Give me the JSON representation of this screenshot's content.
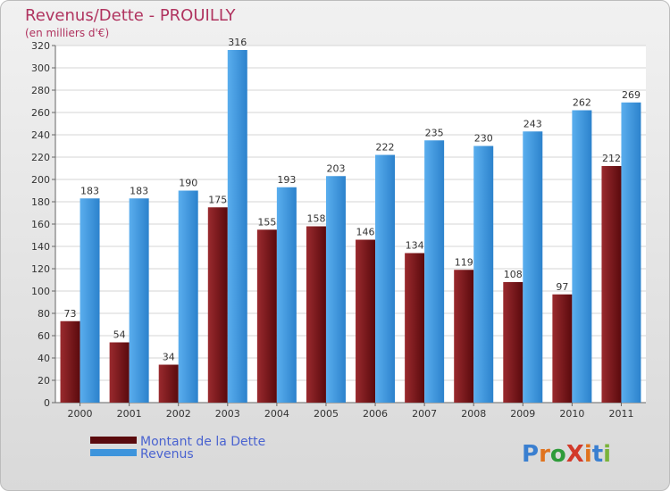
{
  "title": "Revenus/Dette - PROUILLY",
  "subtitle": "(en milliers d'€)",
  "chart_data": {
    "type": "bar",
    "categories": [
      "2000",
      "2001",
      "2002",
      "2003",
      "2004",
      "2005",
      "2006",
      "2007",
      "2008",
      "2009",
      "2010",
      "2011"
    ],
    "series": [
      {
        "name": "Montant de la Dette",
        "color": "#7b1418",
        "values": [
          73,
          54,
          34,
          175,
          155,
          158,
          146,
          134,
          119,
          108,
          97,
          212
        ]
      },
      {
        "name": "Revenus",
        "color": "#3d94dc",
        "values": [
          183,
          183,
          190,
          316,
          193,
          203,
          222,
          235,
          230,
          243,
          262,
          269
        ]
      }
    ],
    "ylim": [
      0,
      320
    ],
    "yticks": [
      0,
      20,
      40,
      60,
      80,
      100,
      120,
      140,
      160,
      180,
      200,
      220,
      240,
      260,
      280,
      300,
      320
    ],
    "grid": true,
    "legend_position": "bottom-left"
  },
  "logo": {
    "text": "ProXiti"
  }
}
